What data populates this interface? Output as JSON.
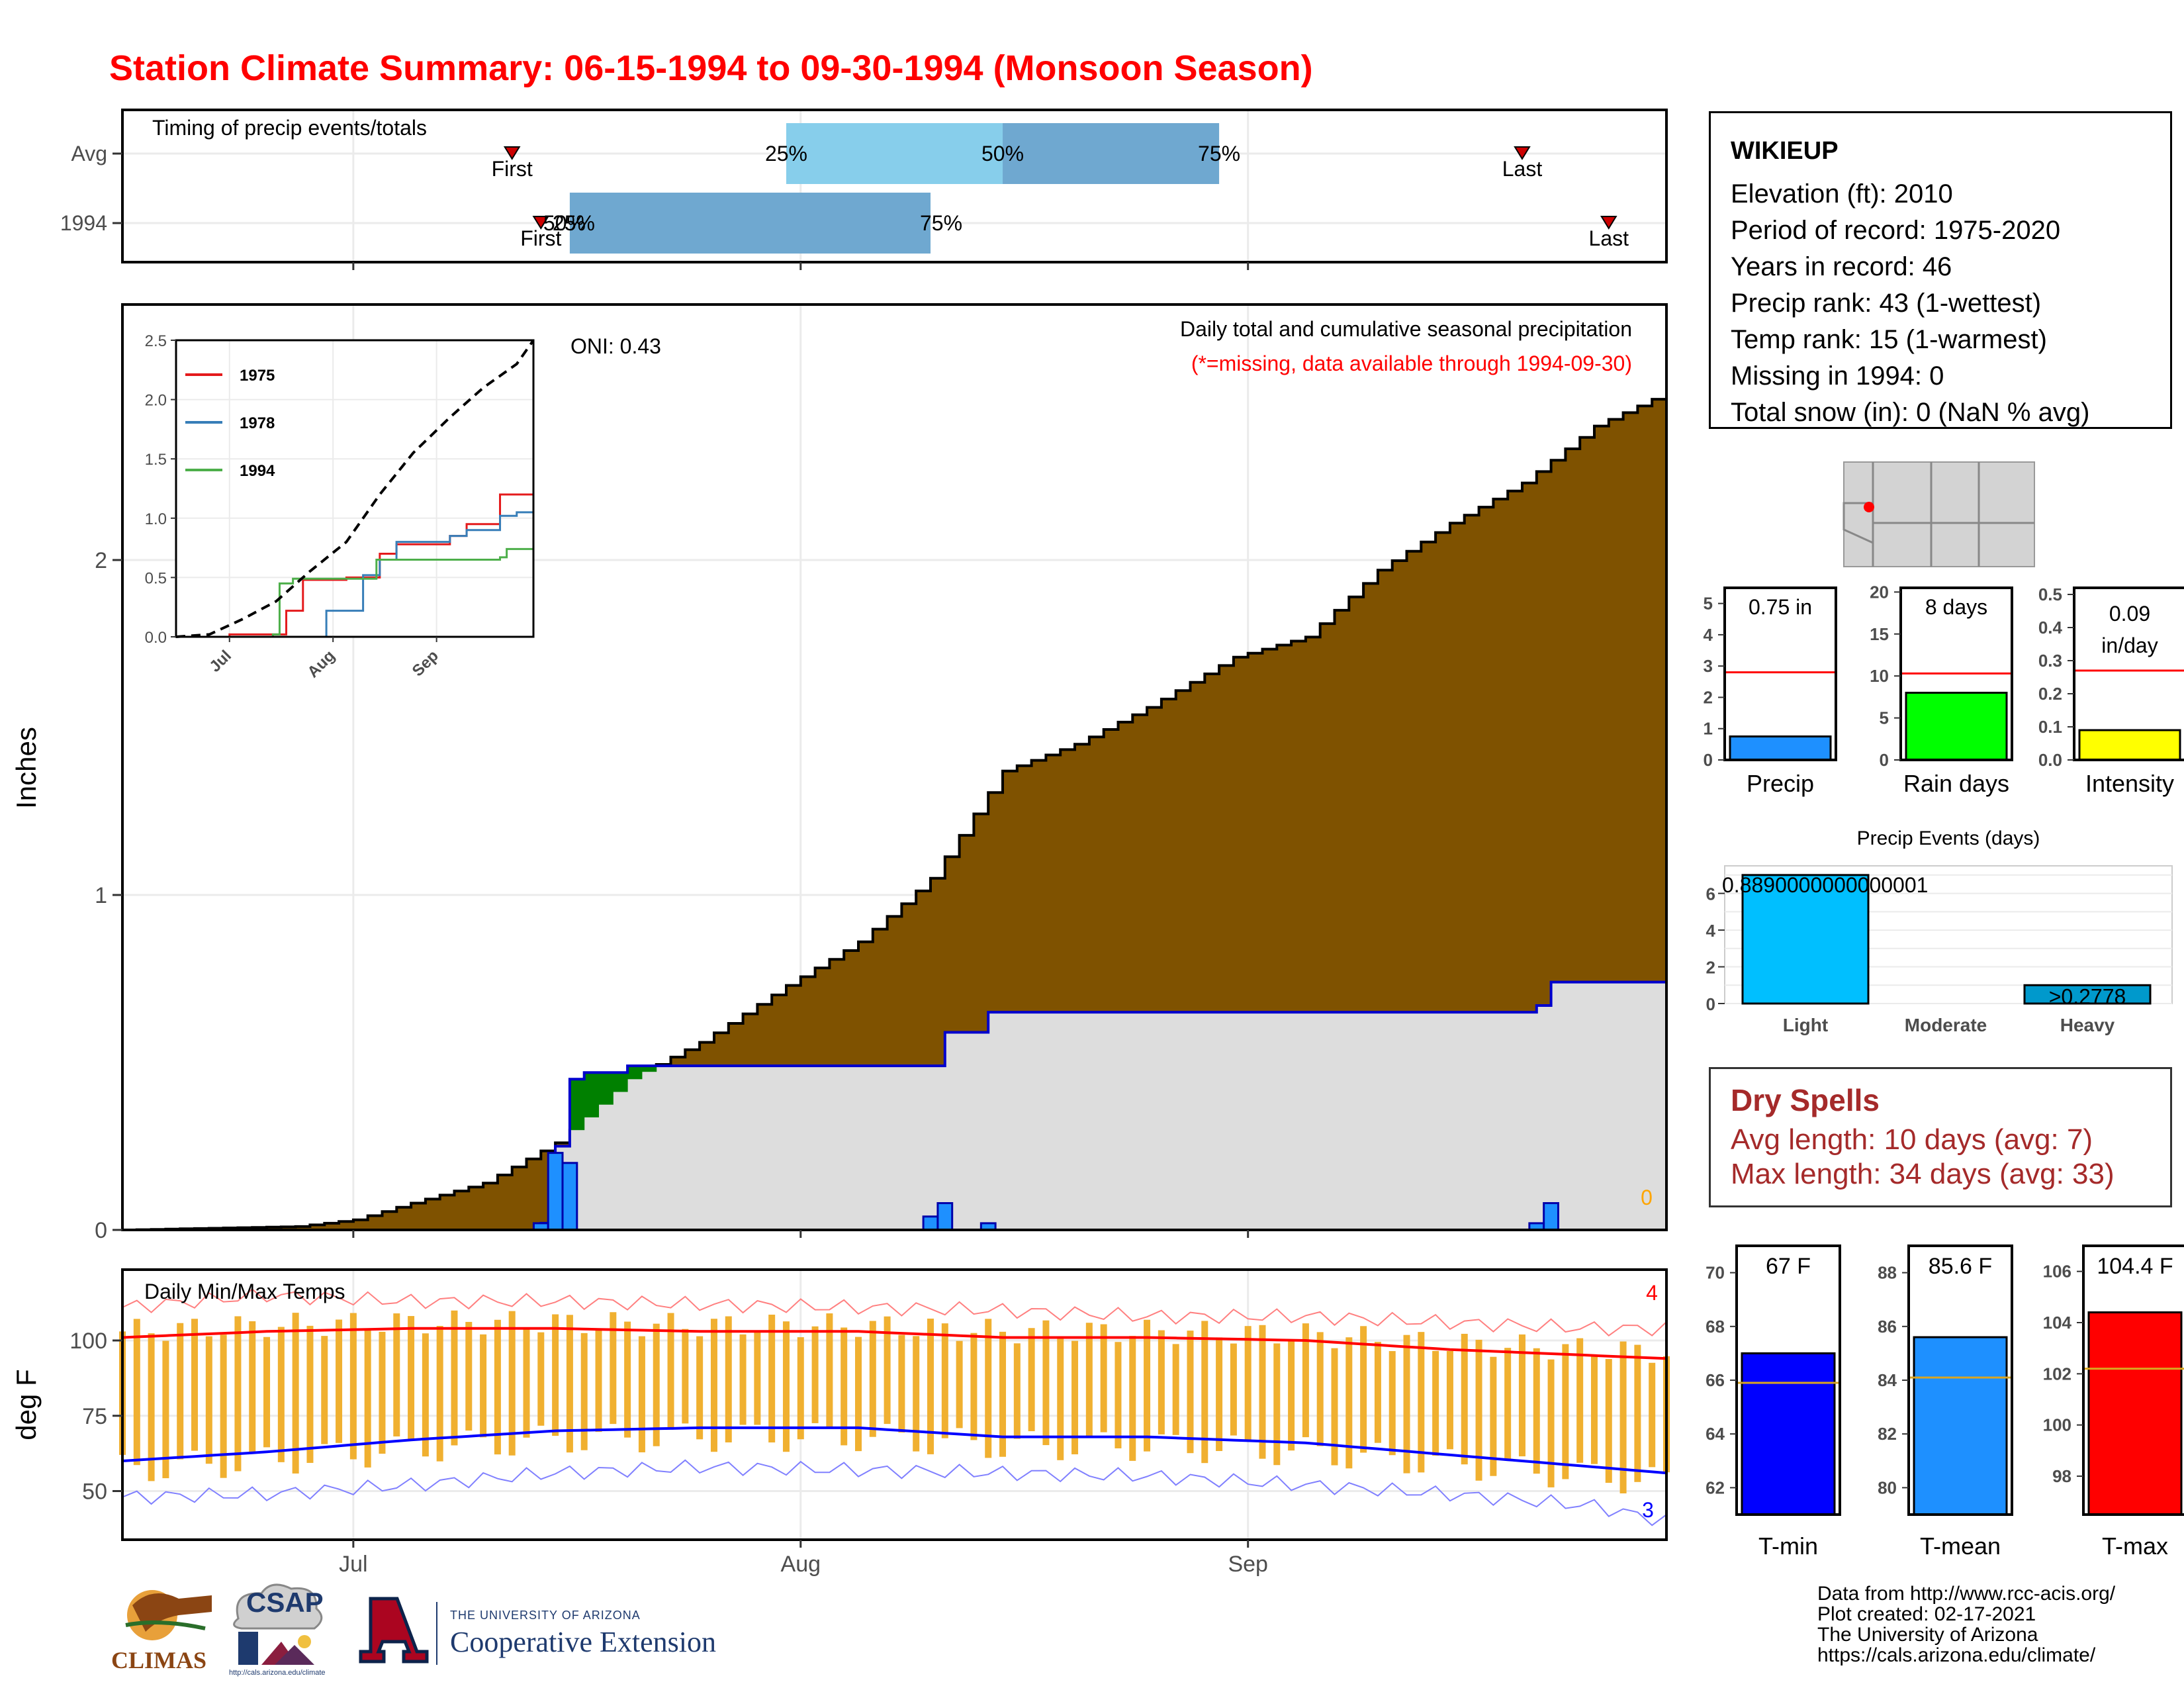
{
  "title": "Station Climate Summary: 06-15-1994 to 09-30-1994 (Monsoon Season)",
  "station": {
    "name": "WIKIEUP",
    "lines": [
      "Elevation (ft): 2010",
      "Period of record: 1975-2020",
      "Years in record: 46",
      "Precip rank: 43 (1-wettest)",
      "Temp rank: 15 (1-warmest)",
      "Missing in 1994: 0",
      "Total snow (in): 0 (NaN % avg)"
    ]
  },
  "dry_spells": {
    "title": "Dry Spells",
    "avg_length": "Avg length: 10 days (avg: 7)",
    "max_length": "Max length: 34 days (avg: 33)"
  },
  "footer": {
    "lines": [
      "Data from http://www.rcc-acis.org/",
      "Plot created: 02-17-2021",
      "The University of Arizona",
      "https://cals.arizona.edu/climate/"
    ]
  },
  "logos": {
    "climas": "CLIMAS",
    "csap": "CSAP",
    "csap_url": "http://cals.arizona.edu/climate",
    "ua_line1": "THE UNIVERSITY OF ARIZONA",
    "ua_line2": "Cooperative Extension"
  },
  "colors": {
    "title": "#ff0000",
    "cum_avg_fill": "#7f5200",
    "cum_obs_fill": "#dddddd",
    "cum_obs_line": "#0000cd",
    "surplus_fill": "#008000",
    "daily_bars": "#1e90ff",
    "temp_bars": "#f0b030",
    "tmax_line": "#ff0000",
    "tmin_line": "#0000ff",
    "timing_light": "#87ceeb",
    "timing_dark": "#6fa8d0",
    "dry_spells": "#a52a2a"
  },
  "chart_data": [
    {
      "id": "timing",
      "type": "bar",
      "title": "Timing of precip events/totals",
      "categories": [
        "Avg",
        "1994"
      ],
      "x_axis": "date",
      "rows": [
        {
          "name": "Avg",
          "first": "1994-07-12",
          "p25": "1994-07-31",
          "p50": "1994-08-15",
          "p75": "1994-08-30",
          "last": "1994-09-20",
          "labels": [
            "First",
            "25%",
            "50%",
            "75%",
            "Last"
          ]
        },
        {
          "name": "1994",
          "first": "1994-07-14",
          "p25": "1994-07-16",
          "p50": "1994-07-16",
          "p75": "1994-08-10",
          "last": "1994-09-26",
          "labels": [
            "First",
            "25%",
            "50%",
            "75%",
            "Last"
          ]
        }
      ]
    },
    {
      "id": "precip",
      "type": "area",
      "title": "Daily total and cumulative seasonal precipitation",
      "subtitle": "(*=missing, data available through 1994-09-30)",
      "annotation": "ONI: 0.43",
      "ylabel": "Inches",
      "ylim": [
        0,
        2.6
      ],
      "yticks": [
        0,
        1,
        2
      ],
      "xticks": [
        "Jul",
        "Aug",
        "Sep"
      ],
      "missing_count": "0",
      "avg_cumulative": {
        "dates": [
          "1994-06-15",
          "1994-06-27",
          "1994-07-01",
          "1994-07-05",
          "1994-07-10",
          "1994-07-15",
          "1994-07-20",
          "1994-07-25",
          "1994-07-31",
          "1994-08-05",
          "1994-08-10",
          "1994-08-15",
          "1994-08-20",
          "1994-08-25",
          "1994-08-31",
          "1994-09-05",
          "1994-09-10",
          "1994-09-15",
          "1994-09-20",
          "1994-09-25",
          "1994-09-30"
        ],
        "values": [
          0,
          0.01,
          0.03,
          0.08,
          0.14,
          0.26,
          0.45,
          0.56,
          0.73,
          0.86,
          1.05,
          1.37,
          1.45,
          1.56,
          1.71,
          1.77,
          1.97,
          2.11,
          2.23,
          2.4,
          2.5
        ]
      },
      "obs_cumulative": {
        "dates": [
          "1994-06-15",
          "1994-07-14",
          "1994-07-15",
          "1994-07-16",
          "1994-07-17",
          "1994-07-20",
          "1994-08-10",
          "1994-08-11",
          "1994-08-14",
          "1994-09-20",
          "1994-09-21",
          "1994-09-22",
          "1994-09-30"
        ],
        "values": [
          0,
          0.02,
          0.25,
          0.45,
          0.47,
          0.49,
          0.49,
          0.59,
          0.65,
          0.65,
          0.67,
          0.74,
          0.75
        ]
      },
      "daily_precip": {
        "dates": [
          "1994-07-14",
          "1994-07-15",
          "1994-07-16",
          "1994-08-10",
          "1994-08-11",
          "1994-08-14",
          "1994-09-21",
          "1994-09-22"
        ],
        "values": [
          0.02,
          0.23,
          0.2,
          0.04,
          0.08,
          0.02,
          0.02,
          0.08
        ]
      }
    },
    {
      "id": "inset",
      "type": "line",
      "ylim": [
        0,
        2.5
      ],
      "yticks": [
        0,
        0.5,
        1,
        1.5,
        2,
        2.5
      ],
      "xticks": [
        "Jul",
        "Aug",
        "Sep"
      ],
      "series": [
        {
          "name": "1975",
          "color": "#e41a1c",
          "dates": [
            "06-15",
            "07-01",
            "07-18",
            "07-23",
            "08-05",
            "08-15",
            "08-20",
            "09-05",
            "09-10",
            "09-20",
            "09-30"
          ],
          "values": [
            0,
            0.02,
            0.22,
            0.48,
            0.5,
            0.7,
            0.78,
            0.85,
            0.95,
            1.2,
            1.2
          ]
        },
        {
          "name": "1978",
          "color": "#377eb8",
          "dates": [
            "06-15",
            "07-24",
            "07-30",
            "08-10",
            "08-15",
            "08-20",
            "09-05",
            "09-10",
            "09-20",
            "09-25",
            "09-30"
          ],
          "values": [
            0,
            0,
            0.22,
            0.52,
            0.65,
            0.8,
            0.85,
            0.9,
            1.02,
            1.05,
            1.05
          ]
        },
        {
          "name": "1994",
          "color": "#4daf4a",
          "dates": [
            "06-15",
            "07-14",
            "07-16",
            "07-20",
            "08-10",
            "08-14",
            "09-20",
            "09-22",
            "09-30"
          ],
          "values": [
            0,
            0.02,
            0.45,
            0.49,
            0.49,
            0.65,
            0.67,
            0.74,
            0.75
          ]
        },
        {
          "name": "",
          "color": "#000000",
          "dashed": true,
          "dates": [
            "06-15",
            "06-25",
            "07-05",
            "07-15",
            "07-25",
            "08-05",
            "08-15",
            "08-25",
            "09-05",
            "09-15",
            "09-25",
            "09-30"
          ],
          "values": [
            0,
            0.02,
            0.15,
            0.3,
            0.55,
            0.8,
            1.2,
            1.55,
            1.85,
            2.1,
            2.3,
            2.5
          ]
        }
      ]
    },
    {
      "id": "temps",
      "type": "bar",
      "title": "Daily Min/Max Temps",
      "ylabel": "deg F",
      "yticks": [
        50,
        75,
        100
      ],
      "xticks": [
        "Jul",
        "Aug",
        "Sep"
      ],
      "record_high_count": "4",
      "record_low_count": "3",
      "avg_tmax": {
        "dates": [
          "06-15",
          "06-25",
          "07-05",
          "07-15",
          "07-25",
          "08-05",
          "08-15",
          "08-25",
          "09-05",
          "09-15",
          "09-25",
          "09-30"
        ],
        "values": [
          101,
          103,
          104,
          104,
          103,
          103,
          101,
          101,
          100,
          97,
          95,
          94
        ]
      },
      "avg_tmin": {
        "dates": [
          "06-15",
          "06-25",
          "07-05",
          "07-15",
          "07-25",
          "08-05",
          "08-15",
          "08-25",
          "09-05",
          "09-15",
          "09-25",
          "09-30"
        ],
        "values": [
          60,
          63,
          67,
          70,
          71,
          71,
          68,
          68,
          66,
          62,
          58,
          56
        ]
      },
      "record_high": {
        "dates": [
          "06-15",
          "06-25",
          "07-05",
          "07-15",
          "07-25",
          "08-05",
          "08-15",
          "08-25",
          "09-05",
          "09-15",
          "09-25",
          "09-30"
        ],
        "values": [
          111,
          115,
          113,
          113,
          112,
          111,
          110,
          108,
          108,
          106,
          104,
          104
        ]
      },
      "record_low": {
        "dates": [
          "06-15",
          "06-25",
          "07-05",
          "07-15",
          "07-25",
          "08-05",
          "08-15",
          "08-25",
          "09-05",
          "09-15",
          "09-25",
          "09-30"
        ],
        "values": [
          48,
          49,
          52,
          56,
          58,
          57,
          56,
          55,
          52,
          49,
          45,
          40
        ]
      }
    },
    {
      "id": "summary_bars",
      "type": "bar",
      "panels": [
        {
          "name": "Precip",
          "value": 0.75,
          "label": "0.75 in",
          "avg": 2.8,
          "ylim": [
            0,
            5.5
          ],
          "yticks": [
            0,
            1,
            2,
            3,
            4,
            5
          ],
          "color": "#1e90ff"
        },
        {
          "name": "Rain days",
          "value": 8,
          "label": "8 days",
          "avg": 10.3,
          "ylim": [
            0,
            20.5
          ],
          "yticks": [
            0,
            5,
            10,
            15,
            20
          ],
          "color": "#00ff00"
        },
        {
          "name": "Intensity",
          "value": 0.09,
          "label": "0.09 in/day",
          "avg": 0.27,
          "ylim": [
            0,
            0.52
          ],
          "yticks": [
            0.0,
            0.1,
            0.2,
            0.3,
            0.4,
            0.5
          ],
          "color": "#ffff00"
        }
      ]
    },
    {
      "id": "events",
      "type": "bar",
      "title": "Precip Events (days)",
      "categories": [
        "Light",
        "Moderate",
        "Heavy"
      ],
      "values": [
        7,
        0,
        1
      ],
      "bar_labels": [
        "0.8890000000000001",
        "",
        ">0.2778"
      ],
      "ylim": [
        0,
        7.5
      ],
      "yticks": [
        0,
        2,
        4,
        6
      ]
    },
    {
      "id": "temp_summary",
      "type": "bar",
      "panels": [
        {
          "name": "T-min",
          "value": 67,
          "label": "67 F",
          "avg": 65.9,
          "ylim": [
            61,
            71
          ],
          "yticks": [
            62,
            64,
            66,
            68,
            70
          ],
          "color": "#0000ff"
        },
        {
          "name": "T-mean",
          "value": 85.6,
          "label": "85.6 F",
          "avg": 84.1,
          "ylim": [
            79,
            89
          ],
          "yticks": [
            80,
            82,
            84,
            86,
            88
          ],
          "color": "#1e90ff"
        },
        {
          "name": "T-max",
          "value": 104.4,
          "label": "104.4 F",
          "avg": 102.2,
          "ylim": [
            96.5,
            107
          ],
          "yticks": [
            98,
            100,
            102,
            104,
            106
          ],
          "color": "#ff0000"
        }
      ]
    }
  ]
}
